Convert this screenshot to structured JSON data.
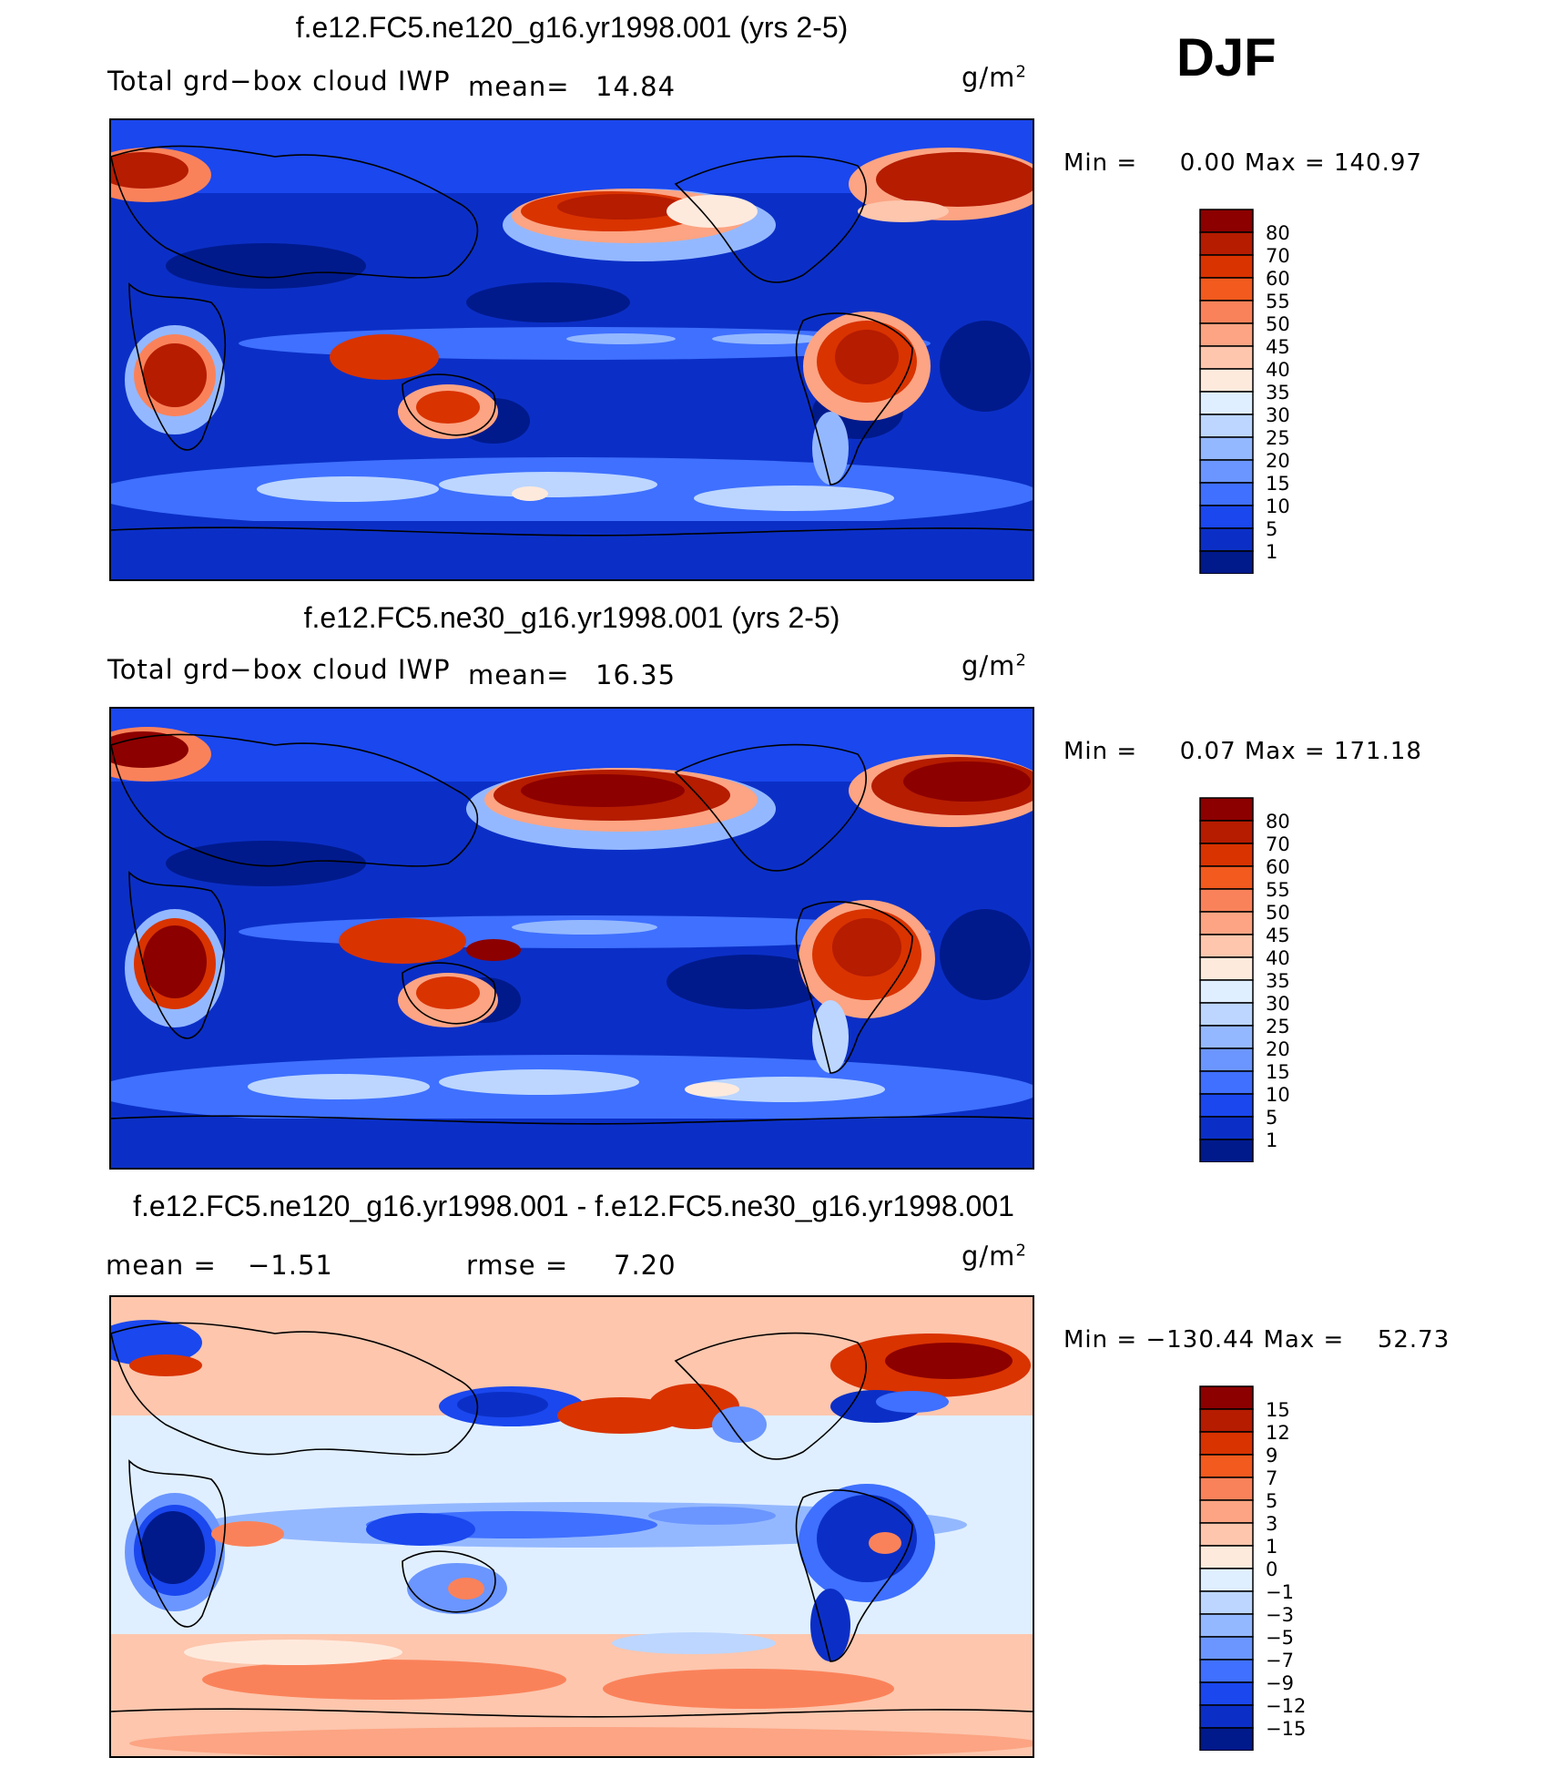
{
  "season": "DJF",
  "panels": [
    {
      "title": "f.e12.FC5.ne120_g16.yr1998.001 (yrs 2-5)",
      "left_label": "Total grd−box cloud IWP",
      "stat_label": "mean=",
      "stat_value": "14.84",
      "units": "g/m",
      "units_exp": "2",
      "min_label": "Min =",
      "min_value": "0.00",
      "max_label": "Max =",
      "max_value": "140.97",
      "levels": [
        "80",
        "70",
        "60",
        "55",
        "50",
        "45",
        "40",
        "35",
        "30",
        "25",
        "20",
        "15",
        "10",
        "5",
        "1"
      ],
      "colors": [
        "#8c0000",
        "#b51c00",
        "#d93300",
        "#f25a1e",
        "#fa825a",
        "#fca483",
        "#fdc6ad",
        "#feeadd",
        "#e0efff",
        "#bcd6ff",
        "#94b8ff",
        "#6b96ff",
        "#3f70ff",
        "#1a47ee",
        "#0b2fc6",
        "#001a8c"
      ]
    },
    {
      "title": "f.e12.FC5.ne30_g16.yr1998.001 (yrs 2-5)",
      "left_label": "Total grd−box cloud IWP",
      "stat_label": "mean=",
      "stat_value": "16.35",
      "units": "g/m",
      "units_exp": "2",
      "min_label": "Min =",
      "min_value": "0.07",
      "max_label": "Max =",
      "max_value": "171.18",
      "levels": [
        "80",
        "70",
        "60",
        "55",
        "50",
        "45",
        "40",
        "35",
        "30",
        "25",
        "20",
        "15",
        "10",
        "5",
        "1"
      ],
      "colors": [
        "#8c0000",
        "#b51c00",
        "#d93300",
        "#f25a1e",
        "#fa825a",
        "#fca483",
        "#fdc6ad",
        "#feeadd",
        "#e0efff",
        "#bcd6ff",
        "#94b8ff",
        "#6b96ff",
        "#3f70ff",
        "#1a47ee",
        "#0b2fc6",
        "#001a8c"
      ]
    },
    {
      "title": "f.e12.FC5.ne120_g16.yr1998.001 - f.e12.FC5.ne30_g16.yr1998.001",
      "left_label": "mean =",
      "stat_label": "−1.51",
      "stat2_label": "rmse =",
      "stat2_value": "7.20",
      "units": "g/m",
      "units_exp": "2",
      "min_label": "Min =",
      "min_value": "−130.44",
      "max_label": "Max =",
      "max_value": "52.73",
      "levels": [
        "15",
        "12",
        "9",
        "7",
        "5",
        "3",
        "1",
        "0",
        "−1",
        "−3",
        "−5",
        "−7",
        "−9",
        "−12",
        "−15"
      ],
      "colors": [
        "#8c0000",
        "#b51c00",
        "#d93300",
        "#f25a1e",
        "#fa825a",
        "#fca483",
        "#fdc6ad",
        "#feeadd",
        "#e0efff",
        "#bcd6ff",
        "#94b8ff",
        "#6b96ff",
        "#3f70ff",
        "#1a47ee",
        "#0b2fc6",
        "#001a8c"
      ]
    }
  ],
  "chart_data": [
    {
      "type": "heatmap",
      "title": "f.e12.FC5.ne120_g16.yr1998.001 (yrs 2-5)",
      "variable": "Total grd−box cloud IWP",
      "units": "g/m2",
      "mean": 14.84,
      "min": 0.0,
      "max": 140.97,
      "contour_levels": [
        1,
        5,
        10,
        15,
        20,
        25,
        30,
        35,
        40,
        45,
        50,
        55,
        60,
        70,
        80
      ]
    },
    {
      "type": "heatmap",
      "title": "f.e12.FC5.ne30_g16.yr1998.001 (yrs 2-5)",
      "variable": "Total grd−box cloud IWP",
      "units": "g/m2",
      "mean": 16.35,
      "min": 0.07,
      "max": 171.18,
      "contour_levels": [
        1,
        5,
        10,
        15,
        20,
        25,
        30,
        35,
        40,
        45,
        50,
        55,
        60,
        70,
        80
      ]
    },
    {
      "type": "heatmap",
      "title": "f.e12.FC5.ne120_g16.yr1998.001 - f.e12.FC5.ne30_g16.yr1998.001",
      "units": "g/m2",
      "mean": -1.51,
      "rmse": 7.2,
      "min": -130.44,
      "max": 52.73,
      "contour_levels": [
        -15,
        -12,
        -9,
        -7,
        -5,
        -3,
        -1,
        0,
        1,
        3,
        5,
        7,
        9,
        12,
        15
      ]
    }
  ]
}
